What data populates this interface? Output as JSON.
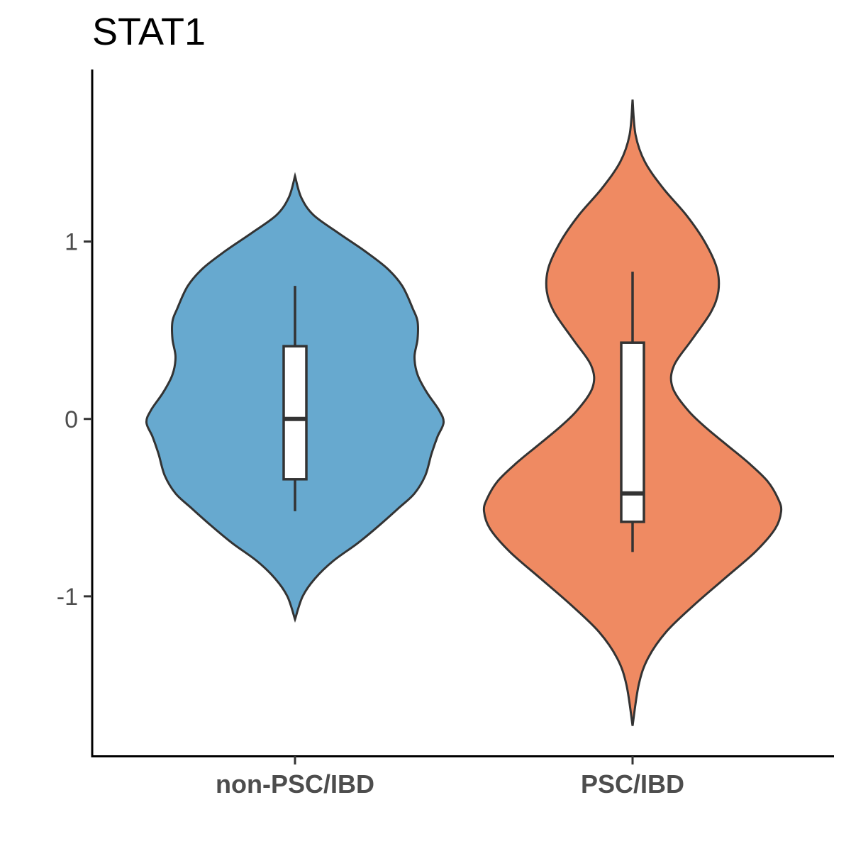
{
  "chart_data": {
    "type": "violin",
    "title": "STAT1",
    "xlabel": "",
    "ylabel": "",
    "ylim": [
      -1.9,
      1.97
    ],
    "yticks": [
      {
        "value": 1,
        "label": "1"
      },
      {
        "value": 0,
        "label": "0"
      },
      {
        "value": -1,
        "label": "-1"
      }
    ],
    "grid": false,
    "legend": "none",
    "categories": [
      "non-PSC/IBD",
      "PSC/IBD"
    ],
    "groups": [
      {
        "category": "non-PSC/IBD",
        "color": "#67a9cf",
        "box": {
          "whisker_low": -0.52,
          "q1": -0.34,
          "median": 0.0,
          "q3": 0.41,
          "whisker_high": 0.75
        },
        "range": [
          -1.13,
          1.37
        ],
        "density_profile": [
          {
            "y": 1.37,
            "w": 0.0
          },
          {
            "y": 1.25,
            "w": 0.04
          },
          {
            "y": 1.15,
            "w": 0.12
          },
          {
            "y": 1.05,
            "w": 0.28
          },
          {
            "y": 0.95,
            "w": 0.45
          },
          {
            "y": 0.85,
            "w": 0.6
          },
          {
            "y": 0.75,
            "w": 0.7
          },
          {
            "y": 0.62,
            "w": 0.77
          },
          {
            "y": 0.55,
            "w": 0.8
          },
          {
            "y": 0.45,
            "w": 0.8
          },
          {
            "y": 0.35,
            "w": 0.78
          },
          {
            "y": 0.25,
            "w": 0.8
          },
          {
            "y": 0.15,
            "w": 0.86
          },
          {
            "y": 0.05,
            "w": 0.94
          },
          {
            "y": -0.02,
            "w": 0.97
          },
          {
            "y": -0.1,
            "w": 0.93
          },
          {
            "y": -0.2,
            "w": 0.89
          },
          {
            "y": -0.32,
            "w": 0.85
          },
          {
            "y": -0.42,
            "w": 0.78
          },
          {
            "y": -0.5,
            "w": 0.68
          },
          {
            "y": -0.6,
            "w": 0.55
          },
          {
            "y": -0.7,
            "w": 0.41
          },
          {
            "y": -0.8,
            "w": 0.25
          },
          {
            "y": -0.9,
            "w": 0.13
          },
          {
            "y": -1.0,
            "w": 0.05
          },
          {
            "y": -1.13,
            "w": 0.0
          }
        ]
      },
      {
        "category": "PSC/IBD",
        "color": "#ef8a62",
        "box": {
          "whisker_low": -0.75,
          "q1": -0.58,
          "median": -0.42,
          "q3": 0.43,
          "whisker_high": 0.83
        },
        "range": [
          -1.73,
          1.8
        ],
        "density_profile": [
          {
            "y": 1.8,
            "w": 0.0
          },
          {
            "y": 1.6,
            "w": 0.02
          },
          {
            "y": 1.45,
            "w": 0.08
          },
          {
            "y": 1.3,
            "w": 0.2
          },
          {
            "y": 1.15,
            "w": 0.35
          },
          {
            "y": 1.0,
            "w": 0.47
          },
          {
            "y": 0.85,
            "w": 0.55
          },
          {
            "y": 0.72,
            "w": 0.56
          },
          {
            "y": 0.6,
            "w": 0.51
          },
          {
            "y": 0.45,
            "w": 0.39
          },
          {
            "y": 0.3,
            "w": 0.27
          },
          {
            "y": 0.18,
            "w": 0.26
          },
          {
            "y": 0.05,
            "w": 0.36
          },
          {
            "y": -0.05,
            "w": 0.48
          },
          {
            "y": -0.15,
            "w": 0.62
          },
          {
            "y": -0.25,
            "w": 0.76
          },
          {
            "y": -0.35,
            "w": 0.88
          },
          {
            "y": -0.45,
            "w": 0.95
          },
          {
            "y": -0.52,
            "w": 0.97
          },
          {
            "y": -0.62,
            "w": 0.93
          },
          {
            "y": -0.75,
            "w": 0.8
          },
          {
            "y": -0.9,
            "w": 0.6
          },
          {
            "y": -1.05,
            "w": 0.4
          },
          {
            "y": -1.2,
            "w": 0.22
          },
          {
            "y": -1.35,
            "w": 0.1
          },
          {
            "y": -1.5,
            "w": 0.04
          },
          {
            "y": -1.73,
            "w": 0.0
          }
        ]
      }
    ]
  }
}
